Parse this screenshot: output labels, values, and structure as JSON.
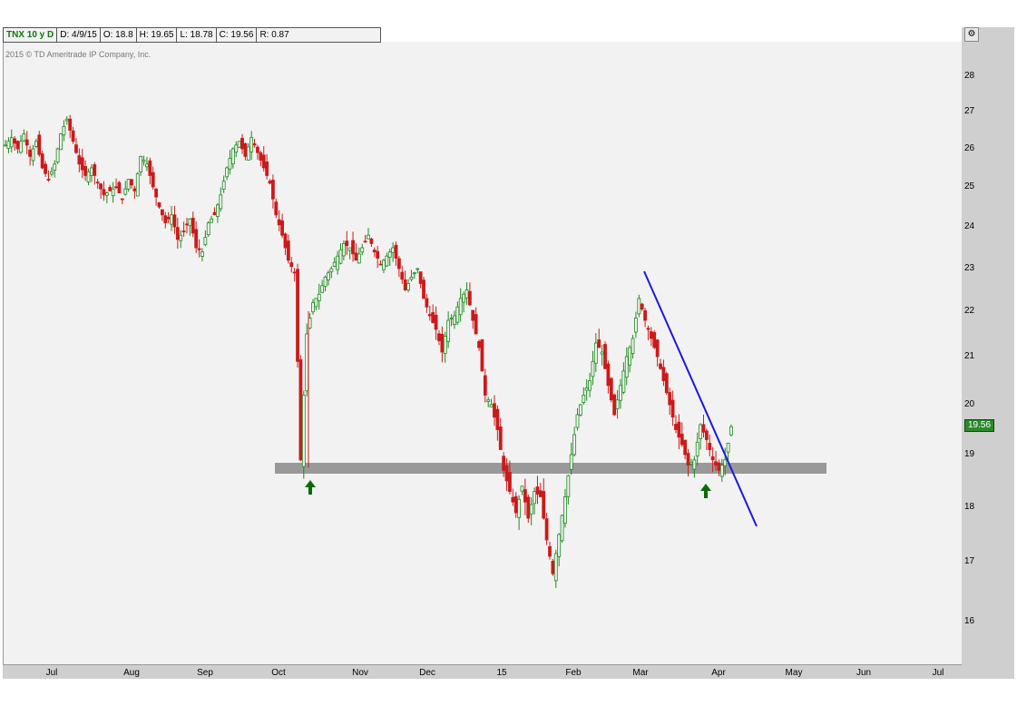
{
  "header": {
    "symbol": "TNX 10 y D",
    "date": "D: 4/9/15",
    "open": "O: 18.8",
    "high": "H: 19.65",
    "low": "L: 18.78",
    "close": "C: 19.56",
    "range": "R: 0.87"
  },
  "copyright": "2015 © TD Ameritrade IP Company, Inc.",
  "last_price": "19.56",
  "colors": {
    "up": "#1a8c1a",
    "down": "#cc1a1a",
    "trendline": "#1a1adc",
    "support_band": "#999999",
    "arrow": "#0a6a0a",
    "badge": "#2a8a2a"
  },
  "chart_data": {
    "type": "candlestick",
    "yticks": [
      16,
      17,
      18,
      19,
      20,
      21,
      22,
      23,
      24,
      25,
      26,
      27,
      28
    ],
    "xticks": [
      "Jul",
      "Aug",
      "Sep",
      "Oct",
      "Nov",
      "Dec",
      "15",
      "Feb",
      "Mar",
      "Apr",
      "May",
      "Jun",
      "Jul"
    ],
    "grid": false,
    "ohlc_approx_closes": [
      26.1,
      26.3,
      26.0,
      26.4,
      25.8,
      26.2,
      25.5,
      25.2,
      25.6,
      26.4,
      26.8,
      26.2,
      25.6,
      25.3,
      25.5,
      25.1,
      24.8,
      24.9,
      25.0,
      24.7,
      25.2,
      24.9,
      25.8,
      25.6,
      25.0,
      24.5,
      24.1,
      24.3,
      23.7,
      23.9,
      24.2,
      23.5,
      23.4,
      24.1,
      24.3,
      24.8,
      25.5,
      26.0,
      26.2,
      25.8,
      26.3,
      25.9,
      25.5,
      25.1,
      24.3,
      23.8,
      23.2,
      22.9,
      18.9,
      21.5,
      22.2,
      22.4,
      22.8,
      23.0,
      23.3,
      23.6,
      23.5,
      23.2,
      23.5,
      23.8,
      23.4,
      23.1,
      23.3,
      23.5,
      23.0,
      22.5,
      22.8,
      23.0,
      22.3,
      21.9,
      21.6,
      21.1,
      21.8,
      21.9,
      22.3,
      22.5,
      21.8,
      21.2,
      20.2,
      20.0,
      19.5,
      18.7,
      18.3,
      17.9,
      18.4,
      17.8,
      18.3,
      18.2,
      17.4,
      16.8,
      17.5,
      18.2,
      19.0,
      19.8,
      20.2,
      20.5,
      21.3,
      21.1,
      20.4,
      19.8,
      20.4,
      21.0,
      21.4,
      22.3,
      21.8,
      21.4,
      21.0,
      20.5,
      20.0,
      19.5,
      19.2,
      18.8,
      18.9,
      19.6,
      19.3,
      18.9,
      18.7,
      18.9,
      19.56
    ],
    "annotations": []
  }
}
